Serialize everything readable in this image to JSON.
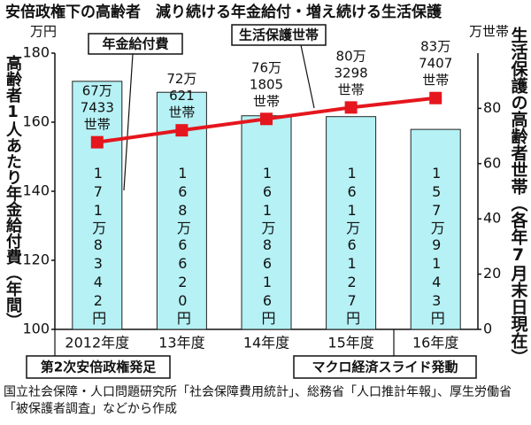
{
  "chart_data": {
    "type": "bar",
    "title": "安倍政権下の高齢者　減り続ける年金給付・増え続ける生活保護",
    "y_unit": "万円",
    "ylabel": "高齢者1人あたり年金給付費（年間）",
    "y2_unit": "万世帯",
    "y2label": "生活保護の高齢者世帯（各年7月末日現在）",
    "categories": [
      "2012年度",
      "13年度",
      "14年度",
      "15年度",
      "16年度"
    ],
    "series": [
      {
        "name": "年金給付費",
        "type": "bar",
        "color": "#b5f1f5",
        "values": [
          171.8342,
          168.662,
          161.8616,
          161.6127,
          157.9143
        ],
        "value_labels": [
          "171万8342円",
          "168万6620円",
          "161万8616円",
          "161万6127円",
          "157万9143円"
        ]
      },
      {
        "name": "生活保護世帯",
        "type": "line",
        "axis": "y2",
        "color": "#e5161d",
        "values": [
          67.7433,
          72.0621,
          76.1805,
          80.3298,
          83.7407
        ],
        "value_labels": [
          "67万7433世帯",
          "72万621世帯",
          "76万1805世帯",
          "80万3298世帯",
          "83万7407世帯"
        ]
      }
    ],
    "ylim": [
      100,
      180
    ],
    "yticks": [
      100,
      120,
      140,
      160,
      180
    ],
    "y2lim": [
      0,
      100
    ],
    "y2ticks": [
      0,
      20,
      40,
      60,
      80
    ],
    "grid": false,
    "annotations": [
      "第2次安倍政権発足",
      "マクロ経済スライド発動"
    ],
    "source": "国立社会保障・人口問題研究所「社会保障費用統計」、総務省「人口推計年報」、厚生労働省「被保護者調査」などから作成"
  }
}
